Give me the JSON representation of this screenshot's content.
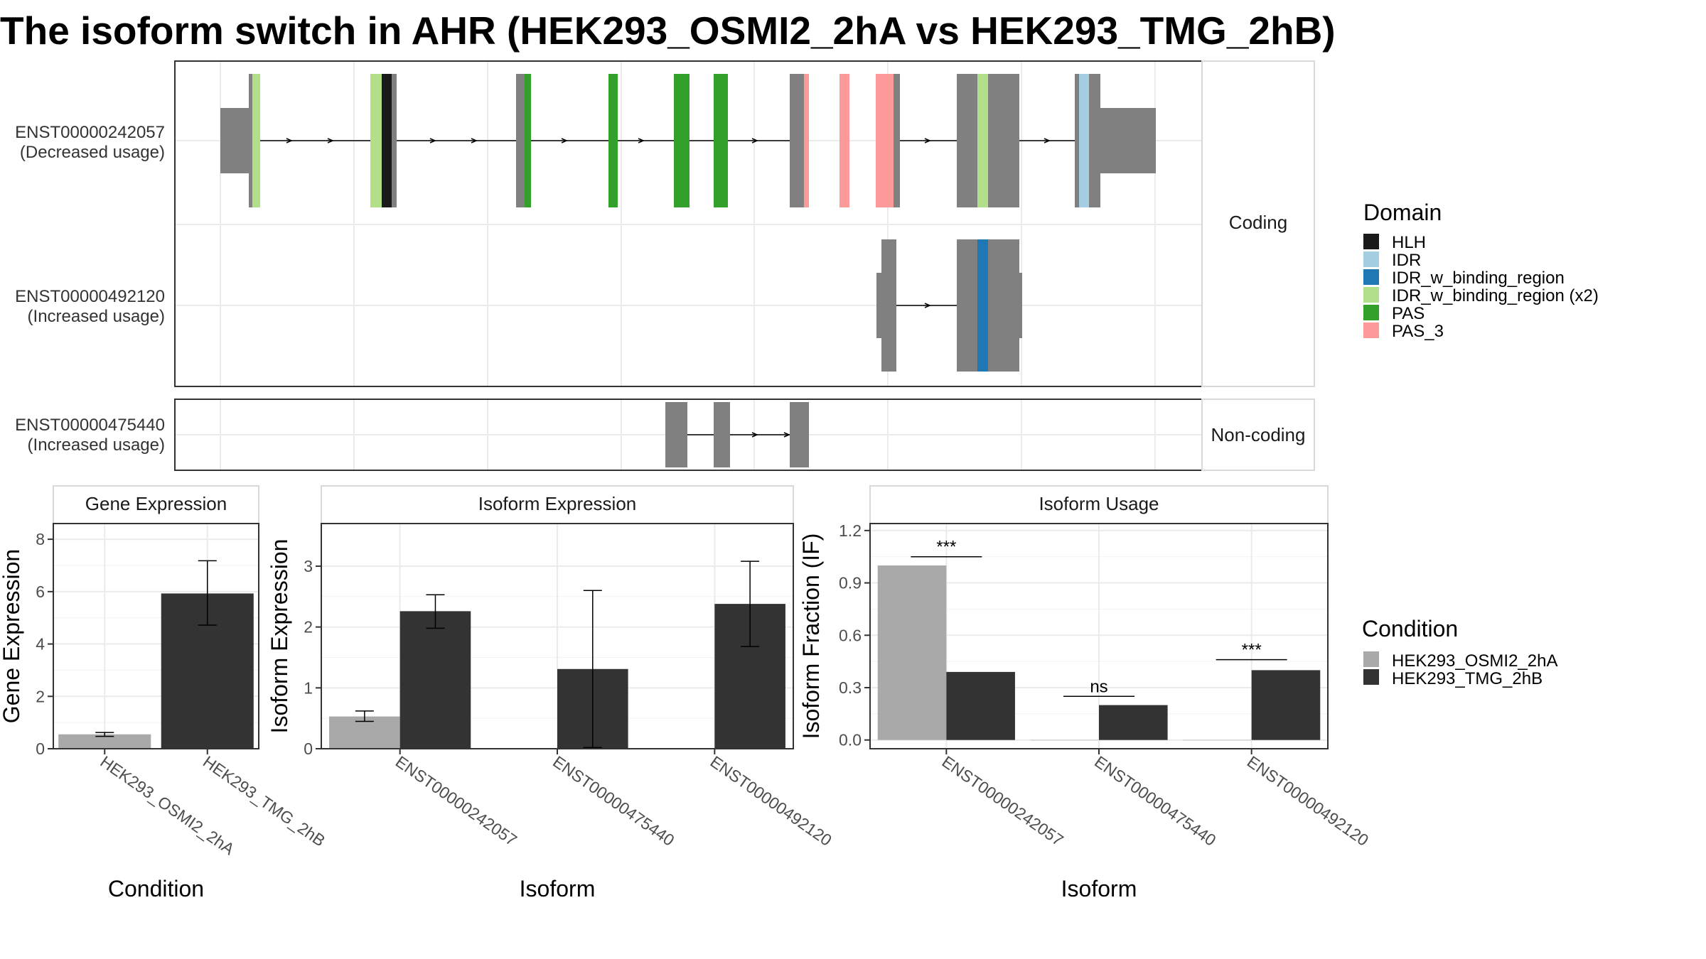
{
  "title": "The isoform switch in AHR (HEK293_OSMI2_2hA vs HEK293_TMG_2hB)",
  "colors": {
    "intron": "#808080",
    "HLH": "#1a1a1a",
    "IDR": "#a6cee3",
    "IDR_w_binding_region": "#1f78b4",
    "IDR_w_binding_region (x2)": "#b2df8a",
    "PAS": "#33a02c",
    "PAS_3": "#fb9a99",
    "cond1": "#a9a9a9",
    "cond2": "#333333"
  },
  "isoforms": {
    "coding_label": "Coding",
    "noncoding_label": "Non-coding",
    "tracks": [
      {
        "id": "ENST00000242057",
        "usage": "(Decreased usage)"
      },
      {
        "id": "ENST00000492120",
        "usage": "(Increased usage)"
      },
      {
        "id": "ENST00000475440",
        "usage": "(Increased usage)"
      }
    ]
  },
  "legends": {
    "domain_title": "Domain",
    "domain_items": [
      "HLH",
      "IDR",
      "IDR_w_binding_region",
      "IDR_w_binding_region (x2)",
      "PAS",
      "PAS_3"
    ],
    "condition_title": "Condition",
    "condition_items": [
      "HEK293_OSMI2_2hA",
      "HEK293_TMG_2hB"
    ]
  },
  "chart_data": [
    {
      "type": "bar",
      "title": "Gene Expression",
      "xlabel": "Condition",
      "ylabel": "Gene Expression",
      "categories": [
        "HEK293_OSMI2_2hA",
        "HEK293_TMG_2hB"
      ],
      "values": [
        0.55,
        5.93
      ],
      "error_low": [
        0.47,
        4.72
      ],
      "error_high": [
        0.62,
        7.18
      ],
      "ylim": [
        0,
        8.6
      ],
      "yticks": [
        "0",
        "2",
        "4",
        "6",
        "8"
      ]
    },
    {
      "type": "bar",
      "title": "Isoform Expression",
      "xlabel": "Isoform",
      "ylabel": "Isoform Expression",
      "categories": [
        "ENST00000242057",
        "ENST00000475440",
        "ENST00000492120"
      ],
      "series": [
        {
          "name": "HEK293_OSMI2_2hA",
          "values": [
            0.53,
            0,
            0
          ],
          "error_low": [
            0.45,
            0,
            0
          ],
          "error_high": [
            0.62,
            0,
            0
          ]
        },
        {
          "name": "HEK293_TMG_2hB",
          "values": [
            2.26,
            1.31,
            2.38
          ],
          "error_low": [
            1.98,
            0.02,
            1.68
          ],
          "error_high": [
            2.53,
            2.6,
            3.08
          ]
        }
      ],
      "ylim": [
        0,
        3.7
      ],
      "yticks": [
        "0",
        "1",
        "2",
        "3"
      ]
    },
    {
      "type": "bar",
      "title": "Isoform Usage",
      "xlabel": "Isoform",
      "ylabel": "Isoform Fraction (IF)",
      "categories": [
        "ENST00000242057",
        "ENST00000475440",
        "ENST00000492120"
      ],
      "series": [
        {
          "name": "HEK293_OSMI2_2hA",
          "values": [
            1.0,
            0,
            0
          ]
        },
        {
          "name": "HEK293_TMG_2hB",
          "values": [
            0.39,
            0.2,
            0.4
          ]
        }
      ],
      "significance": [
        "***",
        "ns",
        "***"
      ],
      "significance_level": [
        1.05,
        0.25,
        0.46
      ],
      "ylim": [
        -0.05,
        1.24
      ],
      "yticks": [
        "0.0",
        "0.3",
        "0.6",
        "0.9",
        "1.2"
      ]
    }
  ]
}
